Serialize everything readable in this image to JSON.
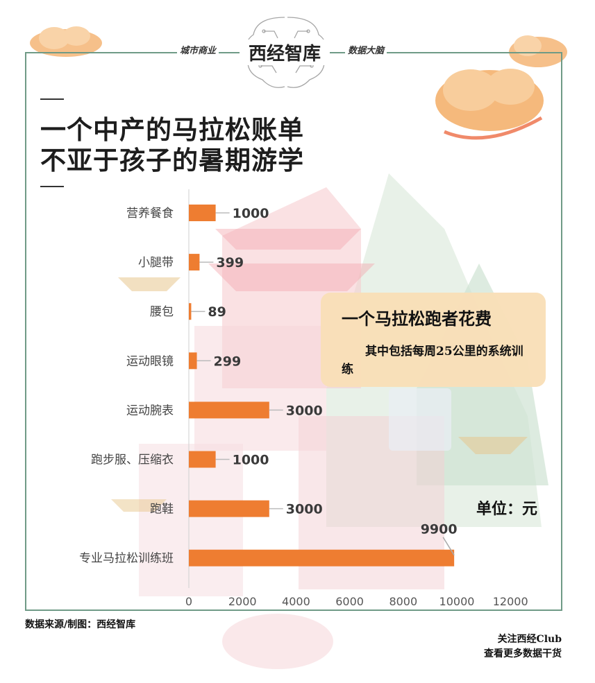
{
  "header": {
    "left_tag": "城市商业",
    "right_tag": "数据大脑",
    "logo": "西经智库"
  },
  "title": {
    "line1": "一个中产的马拉松账单",
    "line2": "不亚于孩子的暑期游学"
  },
  "callout": {
    "title": "一个马拉松跑者花费",
    "body": "其中包括每周25公里的系统训练"
  },
  "unit": "单位：元",
  "footer": {
    "source": "数据来源/制图：西经智库",
    "follow_line1": "关注西经Club",
    "follow_line2": "查看更多数据干货"
  },
  "colors": {
    "bar": "#ee7d31",
    "frame": "#6f9a86"
  },
  "chart_data": {
    "type": "bar",
    "orientation": "horizontal",
    "categories": [
      "营养餐食",
      "小腿带",
      "腰包",
      "运动眼镜",
      "运动腕表",
      "跑步服、压缩衣",
      "跑鞋",
      "专业马拉松训练班"
    ],
    "values": [
      1000,
      399,
      89,
      299,
      3000,
      1000,
      3000,
      9900
    ],
    "value_labels": [
      "1000",
      "399",
      "89",
      "299",
      "3000",
      "1000",
      "3000",
      "9900"
    ],
    "xlim": [
      0,
      12000
    ],
    "xticks": [
      "0",
      "2000",
      "4000",
      "6000",
      "8000",
      "10000",
      "12000"
    ],
    "grid": false,
    "legend": false
  }
}
